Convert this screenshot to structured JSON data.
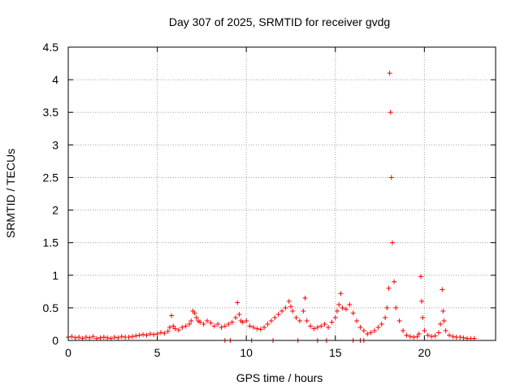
{
  "chart_data": {
    "type": "scatter",
    "title": "Day 307 of 2025, SRMTID for receiver gvdg",
    "xlabel": "GPS time / hours",
    "ylabel": "SRMTID / TECUs",
    "xlim": [
      0,
      24
    ],
    "ylim": [
      0,
      4.5
    ],
    "xticks": [
      "0",
      "5",
      "10",
      "15",
      "20"
    ],
    "yticks": [
      "0",
      "0.5",
      "1",
      "1.5",
      "2",
      "2.5",
      "3",
      "3.5",
      "4",
      "4.5"
    ],
    "grid": true,
    "marker": "+",
    "color": "#ff0000",
    "series": [
      {
        "name": "gvdg",
        "x": [
          0.0,
          0.2,
          0.4,
          0.6,
          0.8,
          1.0,
          1.2,
          1.4,
          1.6,
          1.8,
          2.0,
          2.2,
          2.4,
          2.6,
          2.8,
          3.0,
          3.2,
          3.4,
          3.6,
          3.8,
          4.0,
          4.2,
          4.4,
          4.6,
          4.8,
          5.0,
          5.2,
          5.4,
          5.6,
          5.7,
          5.8,
          5.9,
          6.0,
          6.2,
          6.4,
          6.6,
          6.8,
          6.9,
          7.0,
          7.1,
          7.2,
          7.3,
          7.4,
          7.6,
          7.8,
          8.0,
          8.2,
          8.4,
          8.6,
          8.8,
          9.0,
          9.2,
          9.4,
          9.5,
          9.6,
          9.7,
          9.8,
          10.0,
          10.2,
          10.4,
          10.6,
          10.8,
          11.0,
          11.2,
          11.4,
          11.6,
          11.8,
          12.0,
          12.2,
          12.4,
          12.5,
          12.6,
          12.8,
          13.0,
          13.2,
          13.3,
          13.4,
          13.6,
          13.8,
          14.0,
          14.2,
          14.4,
          14.6,
          14.8,
          15.0,
          15.1,
          15.2,
          15.3,
          15.4,
          15.6,
          15.8,
          16.0,
          16.2,
          16.4,
          16.6,
          16.8,
          17.0,
          17.2,
          17.4,
          17.6,
          17.8,
          17.9,
          18.0,
          18.05,
          18.1,
          18.15,
          18.2,
          18.3,
          18.4,
          18.6,
          18.8,
          19.0,
          19.2,
          19.4,
          19.6,
          19.7,
          19.8,
          19.85,
          19.9,
          20.0,
          20.2,
          20.4,
          20.6,
          20.8,
          20.9,
          21.0,
          21.05,
          21.1,
          21.2,
          21.4,
          21.6,
          21.8,
          22.0,
          22.2,
          22.4,
          22.6,
          22.8,
          8.8,
          9.1,
          14.5,
          16.0,
          16.4,
          16.6,
          14.0,
          10.3,
          11.5,
          12.9
        ],
        "y": [
          0.05,
          0.06,
          0.04,
          0.05,
          0.03,
          0.05,
          0.04,
          0.06,
          0.03,
          0.04,
          0.05,
          0.04,
          0.03,
          0.05,
          0.04,
          0.06,
          0.05,
          0.05,
          0.06,
          0.07,
          0.08,
          0.09,
          0.08,
          0.1,
          0.09,
          0.1,
          0.12,
          0.11,
          0.14,
          0.2,
          0.38,
          0.22,
          0.18,
          0.16,
          0.2,
          0.22,
          0.25,
          0.3,
          0.45,
          0.42,
          0.35,
          0.3,
          0.28,
          0.25,
          0.3,
          0.27,
          0.22,
          0.25,
          0.2,
          0.22,
          0.25,
          0.28,
          0.35,
          0.58,
          0.4,
          0.3,
          0.28,
          0.3,
          0.22,
          0.2,
          0.18,
          0.17,
          0.2,
          0.25,
          0.3,
          0.35,
          0.4,
          0.45,
          0.5,
          0.6,
          0.52,
          0.45,
          0.35,
          0.3,
          0.45,
          0.65,
          0.3,
          0.22,
          0.18,
          0.2,
          0.22,
          0.25,
          0.2,
          0.28,
          0.35,
          0.45,
          0.55,
          0.72,
          0.5,
          0.48,
          0.55,
          0.42,
          0.3,
          0.2,
          0.15,
          0.1,
          0.12,
          0.15,
          0.2,
          0.25,
          0.35,
          0.5,
          0.8,
          4.1,
          3.5,
          2.5,
          1.5,
          0.9,
          0.5,
          0.3,
          0.15,
          0.08,
          0.06,
          0.05,
          0.06,
          0.1,
          0.98,
          0.6,
          0.35,
          0.15,
          0.08,
          0.06,
          0.07,
          0.12,
          0.25,
          0.78,
          0.45,
          0.3,
          0.15,
          0.08,
          0.06,
          0.05,
          0.05,
          0.04,
          0.03,
          0.03,
          0.03,
          0.0,
          0.0,
          0.0,
          0.0,
          0.0,
          0.0,
          0.0,
          0.0,
          0.0,
          0.0
        ]
      }
    ]
  }
}
